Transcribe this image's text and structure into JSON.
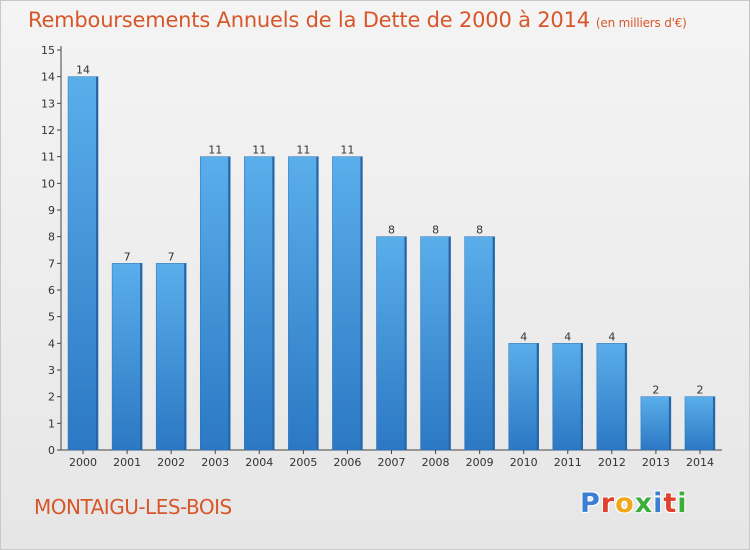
{
  "chart_data": {
    "type": "bar",
    "title": "Remboursements Annuels de la Dette de 2000 à 2014",
    "unit_label": "(en milliers d'€)",
    "categories": [
      "2000",
      "2001",
      "2002",
      "2003",
      "2004",
      "2005",
      "2006",
      "2007",
      "2008",
      "2009",
      "2010",
      "2011",
      "2012",
      "2013",
      "2014"
    ],
    "values": [
      14,
      7,
      7,
      11,
      11,
      11,
      11,
      8,
      8,
      8,
      4,
      4,
      4,
      2,
      2
    ],
    "ylim": [
      0,
      15
    ],
    "yticks": [
      0,
      1,
      2,
      3,
      4,
      5,
      6,
      7,
      8,
      9,
      10,
      11,
      12,
      13,
      14,
      15
    ],
    "grid": false,
    "bar_color": "#3d8fd6"
  },
  "location": "MONTAIGU-LES-BOIS",
  "logo": {
    "letters": [
      "P",
      "r",
      "o",
      "x",
      "i",
      "t",
      "i"
    ],
    "colors": [
      "#3a7fd1",
      "#e0412c",
      "#f0a818",
      "#3cae3c",
      "#3a7fd1",
      "#e0412c",
      "#3cae3c"
    ]
  }
}
